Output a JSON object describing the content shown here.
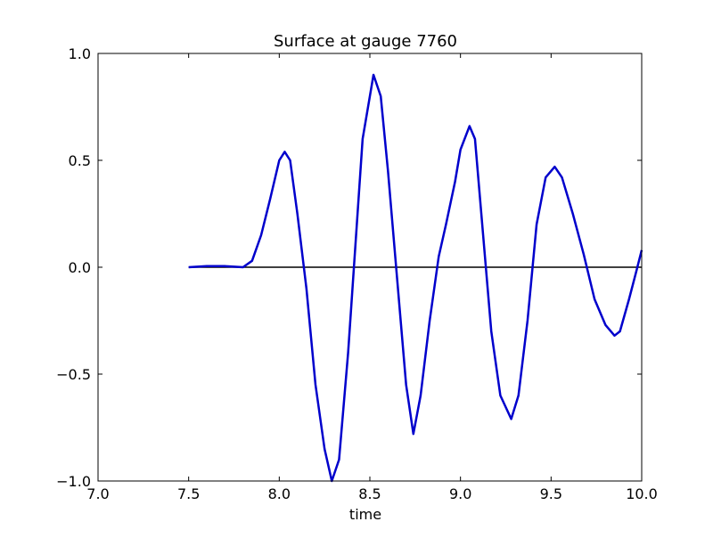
{
  "chart_data": {
    "type": "line",
    "title": "Surface at gauge 7760",
    "xlabel": "time",
    "xlim": [
      7,
      10
    ],
    "ylim": [
      -1,
      1
    ],
    "xticks": [
      {
        "value": 7,
        "label": "7.0"
      },
      7.5,
      {
        "value": 8,
        "label": "8.0"
      },
      8.5,
      {
        "value": 9,
        "label": "9.0"
      },
      9.5,
      {
        "value": 10,
        "label": "10.0"
      }
    ],
    "yticks": [
      {
        "value": -1,
        "label": "−1.0"
      },
      {
        "value": -0.5,
        "label": "−0.5"
      },
      {
        "value": 0,
        "label": "0.0"
      },
      0.5,
      {
        "value": 1,
        "label": "1.0"
      }
    ],
    "series": [
      {
        "color": "#0000cc",
        "x": [
          7.5,
          7.6,
          7.7,
          7.8,
          7.85,
          7.9,
          7.95,
          8.0,
          8.03,
          8.06,
          8.1,
          8.15,
          8.2,
          8.25,
          8.29,
          8.33,
          8.38,
          8.42,
          8.46,
          8.52,
          8.56,
          8.6,
          8.65,
          8.7,
          8.74,
          8.78,
          8.83,
          8.88,
          8.92,
          8.97,
          9.0,
          9.05,
          9.08,
          9.12,
          9.17,
          9.22,
          9.28,
          9.32,
          9.37,
          9.42,
          9.47,
          9.52,
          9.56,
          9.62,
          9.68,
          9.74,
          9.8,
          9.85,
          9.88,
          9.93,
          9.97,
          10.0
        ],
        "values": [
          0,
          0.005,
          0.005,
          0,
          0.03,
          0.15,
          0.32,
          0.5,
          0.54,
          0.5,
          0.25,
          -0.1,
          -0.55,
          -0.85,
          -1.0,
          -0.9,
          -0.4,
          0.1,
          0.6,
          0.9,
          0.8,
          0.45,
          -0.05,
          -0.55,
          -0.78,
          -0.6,
          -0.25,
          0.05,
          0.2,
          0.4,
          0.55,
          0.66,
          0.6,
          0.2,
          -0.3,
          -0.6,
          -0.71,
          -0.6,
          -0.25,
          0.2,
          0.42,
          0.47,
          0.42,
          0.25,
          0.06,
          -0.15,
          -0.27,
          -0.32,
          -0.3,
          -0.15,
          -0.02,
          0.08
        ]
      },
      {
        "color": "#000000",
        "x": [
          7.5,
          10
        ],
        "values": [
          0,
          0
        ]
      }
    ]
  }
}
